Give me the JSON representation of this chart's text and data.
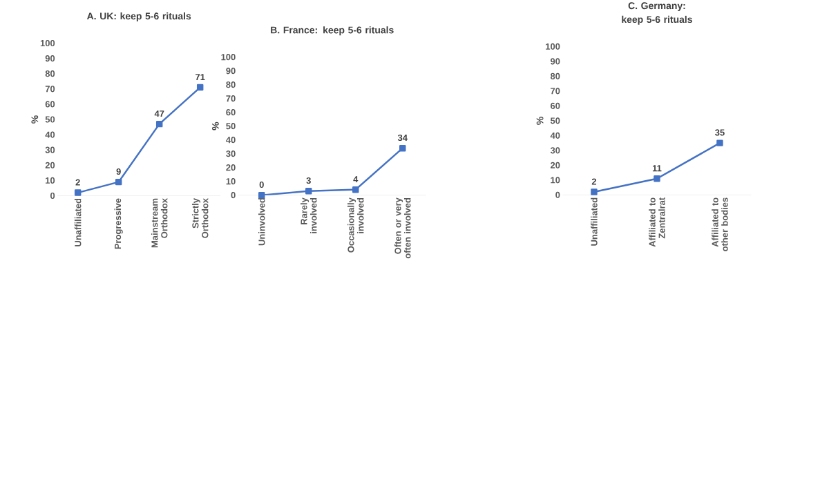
{
  "chart_data": [
    {
      "type": "line",
      "title": "A. UK: keep 5-6 rituals",
      "ylabel": "%",
      "categories": [
        "Unaffiliated",
        "Progressive",
        "Mainstream Orthodox",
        "Strictly Orthodox"
      ],
      "values": [
        2,
        9,
        47,
        71
      ],
      "color": "#4472c4",
      "marker": "square",
      "data_labels": true,
      "ylim": [
        0,
        100
      ],
      "yticks": [
        0,
        10,
        20,
        30,
        40,
        50,
        60,
        70,
        80,
        90,
        100
      ]
    },
    {
      "type": "line",
      "title": "B. France: keep 5-6 rituals",
      "ylabel": "%",
      "categories": [
        "Uninvolved",
        "Rarely involved",
        "Occasionally involved",
        "Often or very often involved"
      ],
      "values": [
        0,
        3,
        4,
        34
      ],
      "color": "#4472c4",
      "marker": "square",
      "data_labels": true,
      "ylim": [
        0,
        100
      ],
      "yticks": [
        0,
        10,
        20,
        30,
        40,
        50,
        60,
        70,
        80,
        90,
        100
      ]
    },
    {
      "type": "line",
      "title": "C. Germany: keep 5-6 rituals",
      "ylabel": "%",
      "categories": [
        "Unaffiliated",
        "Affiliated to Zentralrat",
        "Affiliated to other bodies"
      ],
      "values": [
        2,
        11,
        35
      ],
      "color": "#4472c4",
      "marker": "square",
      "data_labels": true,
      "ylim": [
        0,
        100
      ],
      "yticks": [
        0,
        10,
        20,
        30,
        40,
        50,
        60,
        70,
        80,
        90,
        100
      ]
    }
  ]
}
